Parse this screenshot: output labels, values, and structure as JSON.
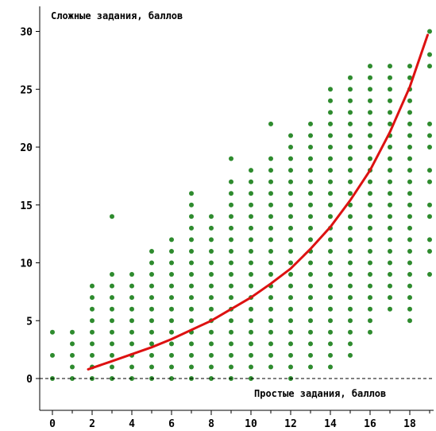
{
  "chart_data": {
    "type": "scatter",
    "ylabel": "Сложные задания, баллов",
    "xlabel": "Простые задания, баллов",
    "xlim": [
      -0.5,
      19.2
    ],
    "ylim": [
      -2,
      31
    ],
    "x_ticks": [
      "0",
      "2",
      "4",
      "6",
      "8",
      "10",
      "12",
      "14",
      "16",
      "18"
    ],
    "y_ticks": [
      "0",
      "5",
      "10",
      "15",
      "20",
      "25",
      "30"
    ],
    "grid": false,
    "reference_line": {
      "y": 0,
      "style": "dashed"
    },
    "colors": {
      "points": "#2e8b2e",
      "curve": "#dd1111",
      "axis": "#000000"
    },
    "series": [
      {
        "type": "scatter",
        "point_columns": [
          {
            "x": 0,
            "ymin": 0,
            "ymax": 4,
            "gaps": [
              1,
              3
            ]
          },
          {
            "x": 1,
            "ymin": 0,
            "ymax": 4
          },
          {
            "x": 2,
            "ymin": 0,
            "ymax": 8
          },
          {
            "x": 3,
            "ymin": 0,
            "ymax": 9,
            "extra": [
              14
            ]
          },
          {
            "x": 4,
            "ymin": 0,
            "ymax": 9
          },
          {
            "x": 5,
            "ymin": 0,
            "ymax": 11
          },
          {
            "x": 6,
            "ymin": 0,
            "ymax": 12
          },
          {
            "x": 7,
            "ymin": 0,
            "ymax": 16
          },
          {
            "x": 8,
            "ymin": 0,
            "ymax": 14
          },
          {
            "x": 9,
            "ymin": 0,
            "ymax": 17,
            "extra": [
              19
            ]
          },
          {
            "x": 10,
            "ymin": 0,
            "ymax": 18
          },
          {
            "x": 11,
            "ymin": 1,
            "ymax": 19,
            "extra": [
              22
            ]
          },
          {
            "x": 12,
            "ymin": 0,
            "ymax": 21
          },
          {
            "x": 13,
            "ymin": 1,
            "ymax": 22
          },
          {
            "x": 14,
            "ymin": 1,
            "ymax": 25
          },
          {
            "x": 15,
            "ymin": 2,
            "ymax": 26
          },
          {
            "x": 16,
            "ymin": 4,
            "ymax": 27
          },
          {
            "x": 17,
            "ymin": 6,
            "ymax": 27
          },
          {
            "x": 18,
            "ymin": 5,
            "ymax": 27
          },
          {
            "x": 19,
            "ymin": 9,
            "ymax": 30,
            "gaps": [
              10,
              13,
              16,
              19,
              23,
              24,
              25,
              26,
              29
            ]
          }
        ]
      },
      {
        "type": "line",
        "x": [
          1.8,
          3,
          4,
          5,
          6,
          7,
          8,
          9,
          10,
          11,
          12,
          13,
          14,
          15,
          16,
          17,
          18,
          18.9
        ],
        "values": [
          0.8,
          1.5,
          2.1,
          2.7,
          3.4,
          4.2,
          5.0,
          6.0,
          7.0,
          8.2,
          9.5,
          11.2,
          13.1,
          15.4,
          18.0,
          21.3,
          25.2,
          29.7
        ]
      }
    ]
  }
}
